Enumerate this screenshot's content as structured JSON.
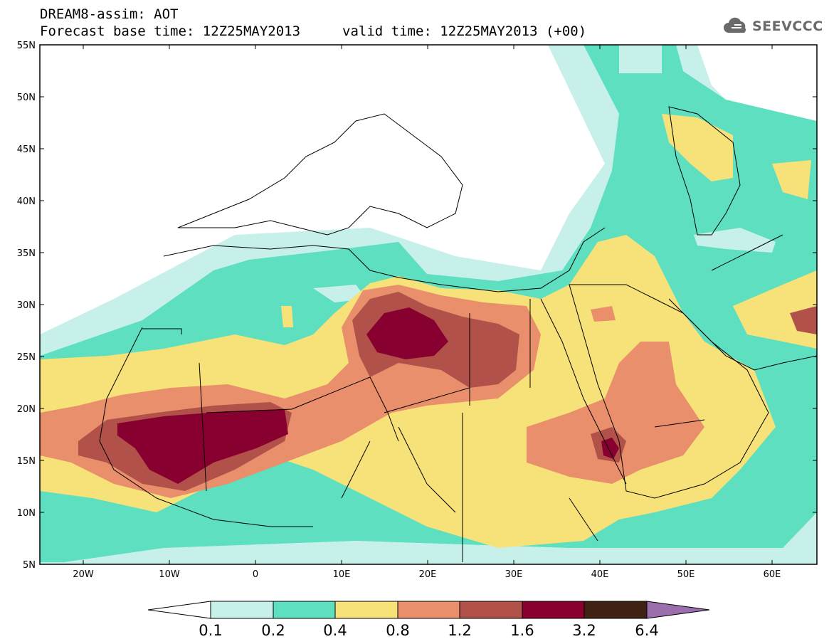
{
  "header": {
    "title_line1": "DREAM8-assim: AOT",
    "title_line2_left": "Forecast base time: 12Z25MAY2013",
    "title_line2_right": "valid time: 12Z25MAY2013 (+00)",
    "logo_text": "SEEVCCC"
  },
  "map": {
    "projection": "lat-lon",
    "lon_range": [
      -25,
      65
    ],
    "lat_range": [
      5,
      55
    ],
    "lat_labels": [
      "55N",
      "50N",
      "45N",
      "40N",
      "35N",
      "30N",
      "25N",
      "20N",
      "15N",
      "10N",
      "5N"
    ],
    "lon_labels": [
      "20W",
      "10W",
      "0",
      "10E",
      "20E",
      "30E",
      "40E",
      "50E",
      "60E"
    ]
  },
  "colorbar": {
    "levels": [
      "0.1",
      "0.2",
      "0.4",
      "0.8",
      "1.2",
      "1.6",
      "3.2",
      "6.4"
    ],
    "colors": [
      "#ffffff",
      "#c8f0eb",
      "#5ddfc0",
      "#f7e27a",
      "#e98f6b",
      "#b25149",
      "#87002f",
      "#3f2214",
      "#9b6fad"
    ]
  },
  "icons": {
    "logo": "cloud-icon"
  }
}
